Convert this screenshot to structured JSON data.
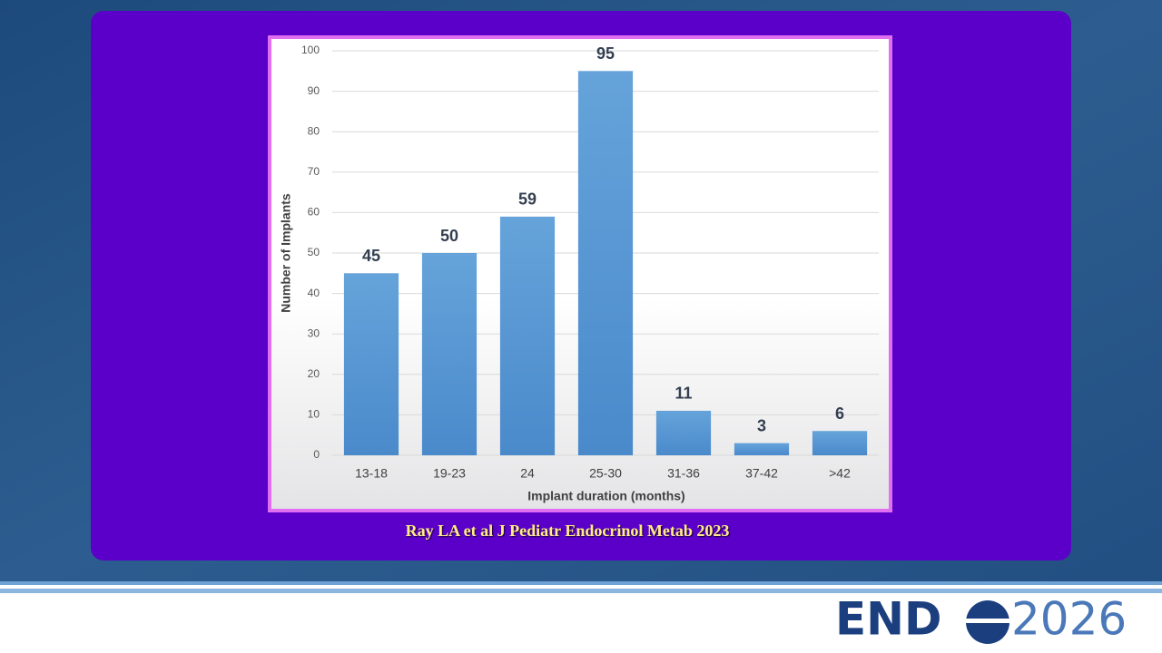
{
  "chart_data": {
    "type": "bar",
    "categories": [
      "13-18",
      "19-23",
      "24",
      "25-30",
      "31-36",
      "37-42",
      ">42"
    ],
    "values": [
      45,
      50,
      59,
      95,
      11,
      3,
      6
    ],
    "color": "#5b9bd5",
    "xlabel": "Implant duration (months)",
    "ylabel": "Number of Implants",
    "ylim": [
      0,
      100
    ],
    "yticks": [
      0,
      10,
      20,
      30,
      40,
      50,
      60,
      70,
      80,
      90,
      100
    ],
    "grid": true
  },
  "citation": "Ray LA et al J Pediatr Endocrinol Metab 2023",
  "logo": {
    "left": "END",
    "right": "2026"
  }
}
